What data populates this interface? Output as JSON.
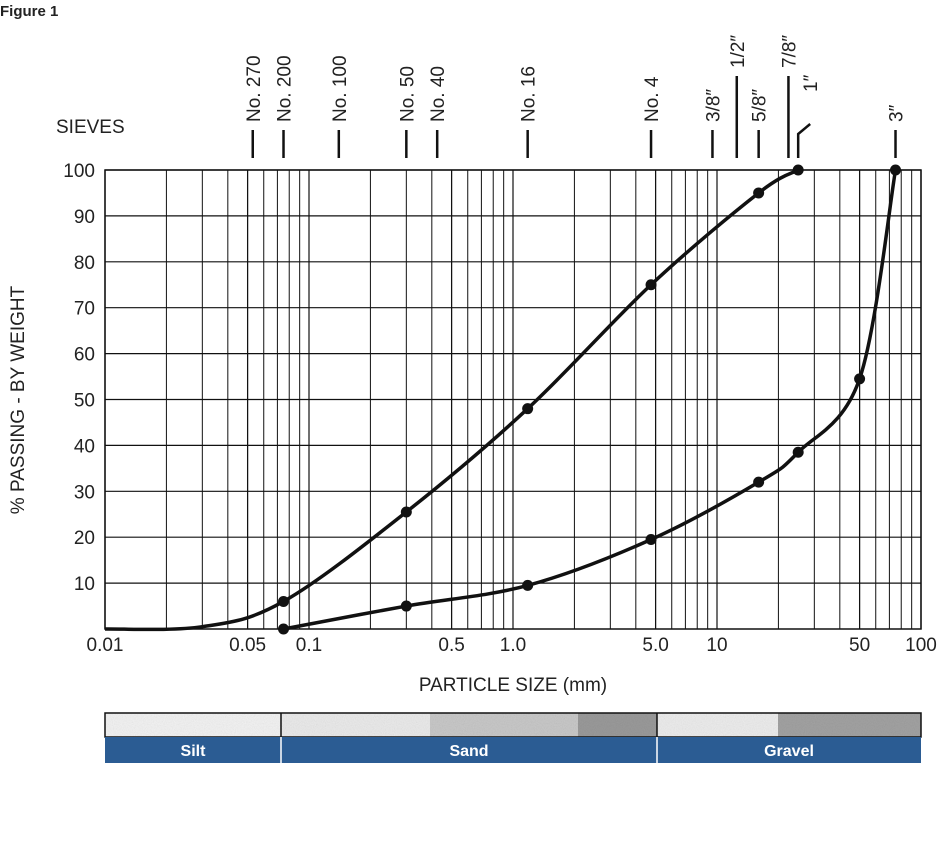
{
  "figure_label": "Figure 1",
  "chart_data": {
    "type": "line",
    "xlabel": "PARTICLE SIZE (mm)",
    "ylabel": "% PASSING - BY WEIGHT",
    "xscale": "log",
    "xlim": [
      0.01,
      100
    ],
    "ylim": [
      0,
      100
    ],
    "xticks": [
      0.01,
      0.05,
      0.1,
      0.5,
      {
        "value": 1,
        "label": "1.0"
      },
      {
        "value": 5,
        "label": "5.0"
      },
      10,
      50,
      100
    ],
    "yticks": [
      10,
      20,
      30,
      40,
      50,
      60,
      70,
      80,
      90,
      100
    ],
    "grid": true,
    "sieve_title": "SIEVES",
    "sieves": [
      {
        "label": "No. 270",
        "size": 0.053
      },
      {
        "label": "No. 200",
        "size": 0.075
      },
      {
        "label": "No. 100",
        "size": 0.14
      },
      {
        "label": "No. 50",
        "size": 0.3
      },
      {
        "label": "No. 40",
        "size": 0.425
      },
      {
        "label": "No. 16",
        "size": 1.18
      },
      {
        "label": "No. 4",
        "size": 4.75
      },
      {
        "label": "3/8″",
        "size": 9.5
      },
      {
        "label": "1/2″",
        "size": 12.5
      },
      {
        "label": "5/8″",
        "size": 16
      },
      {
        "label": "7/8″",
        "size": 22.4
      },
      {
        "label": "1″",
        "size": 25
      },
      {
        "label": "3″",
        "size": 75
      }
    ],
    "series": [
      {
        "color": "#111111",
        "x": [
          0.01,
          0.03,
          0.075,
          0.3,
          1.18,
          4.75,
          16,
          25
        ],
        "values": [
          0,
          0.5,
          6,
          25.5,
          48,
          75,
          95,
          100
        ],
        "markers": [
          false,
          false,
          true,
          true,
          true,
          true,
          true,
          true
        ]
      },
      {
        "color": "#111111",
        "x": [
          0.075,
          0.3,
          1.18,
          4.75,
          16,
          25,
          50,
          75
        ],
        "values": [
          0,
          5,
          9.5,
          19.5,
          32,
          38.5,
          54.5,
          100
        ],
        "markers": [
          true,
          true,
          true,
          true,
          true,
          true,
          true,
          true
        ]
      }
    ],
    "soil_classes": [
      "Silt",
      "Sand",
      "Gravel"
    ]
  }
}
